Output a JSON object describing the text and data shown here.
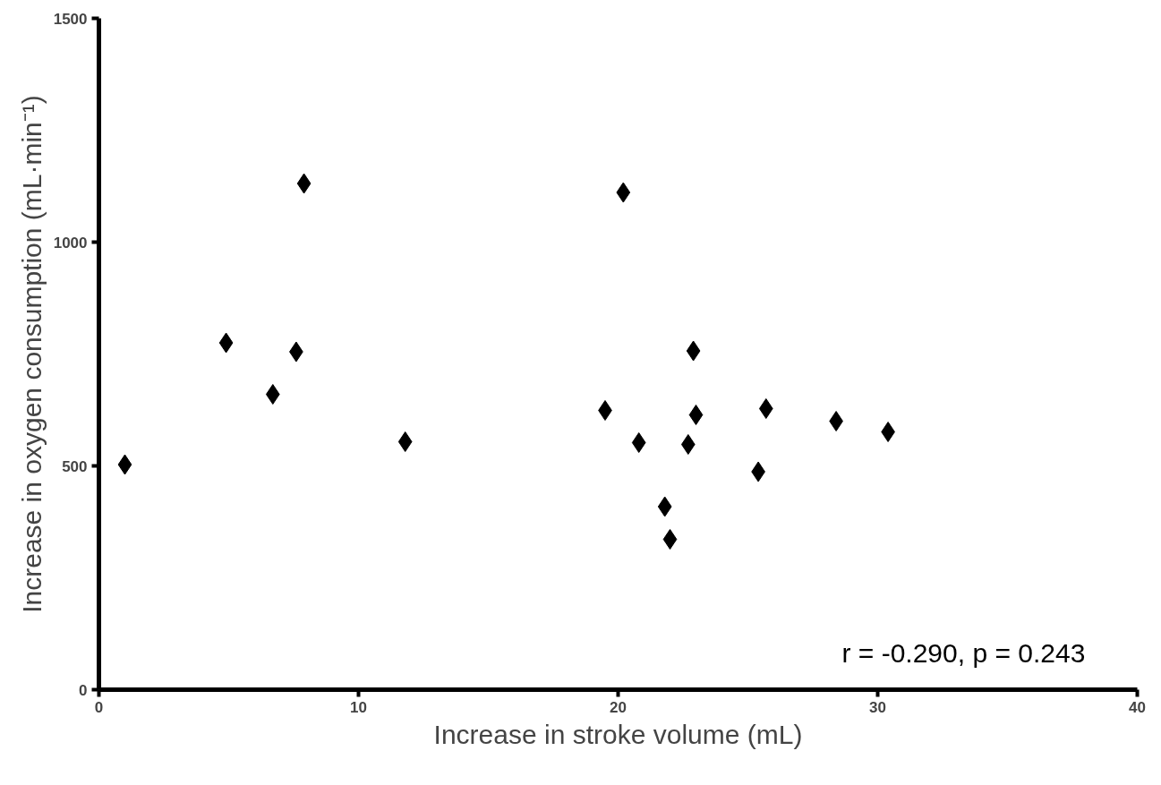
{
  "chart_data": {
    "type": "scatter",
    "xlabel": "Increase in stroke volume (mL)",
    "ylabel": "Increase in oxygen consumption (mL·min⁻¹)",
    "x": [
      1.0,
      4.9,
      6.7,
      7.6,
      7.9,
      11.8,
      19.5,
      20.2,
      20.8,
      21.8,
      22.0,
      22.7,
      22.9,
      23.0,
      25.4,
      25.7,
      28.4,
      30.4
    ],
    "series": [
      {
        "color": "#000000",
        "values": [
          503,
          775,
          660,
          755,
          1131,
          554,
          624,
          1111,
          552,
          409,
          336,
          548,
          757,
          614,
          487,
          628,
          600,
          576
        ]
      }
    ],
    "xlim": [
      0,
      40
    ],
    "ylim": [
      0,
      1500
    ],
    "xticks": [
      0,
      10,
      20,
      30,
      40
    ],
    "yticks": [
      0,
      500,
      1000,
      1500
    ],
    "marker": "diamond",
    "grid": false,
    "annotations": [
      "r = -0.290, p = 0.243"
    ]
  }
}
